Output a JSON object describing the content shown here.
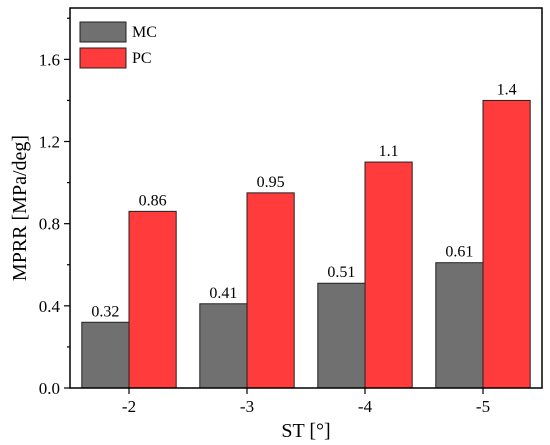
{
  "chart_data": {
    "type": "bar",
    "categories": [
      "-2",
      "-3",
      "-4",
      "-5"
    ],
    "series": [
      {
        "name": "MC",
        "values": [
          0.32,
          0.41,
          0.51,
          0.61
        ],
        "color": "#707070"
      },
      {
        "name": "PC",
        "values": [
          0.86,
          0.95,
          1.1,
          1.4
        ],
        "color": "#ff3b3b"
      }
    ],
    "data_labels": {
      "MC": [
        "0.32",
        "0.41",
        "0.51",
        "0.61"
      ],
      "PC": [
        "0.86",
        "0.95",
        "1.1",
        "1.4"
      ]
    },
    "xlabel": "ST [°]",
    "ylabel": "MPRR [MPa/deg]",
    "ylim": [
      0,
      1.85
    ],
    "yticks": [
      "0.0",
      "0.4",
      "0.8",
      "1.2",
      "1.6"
    ],
    "grid": false,
    "legend": "top-left"
  }
}
